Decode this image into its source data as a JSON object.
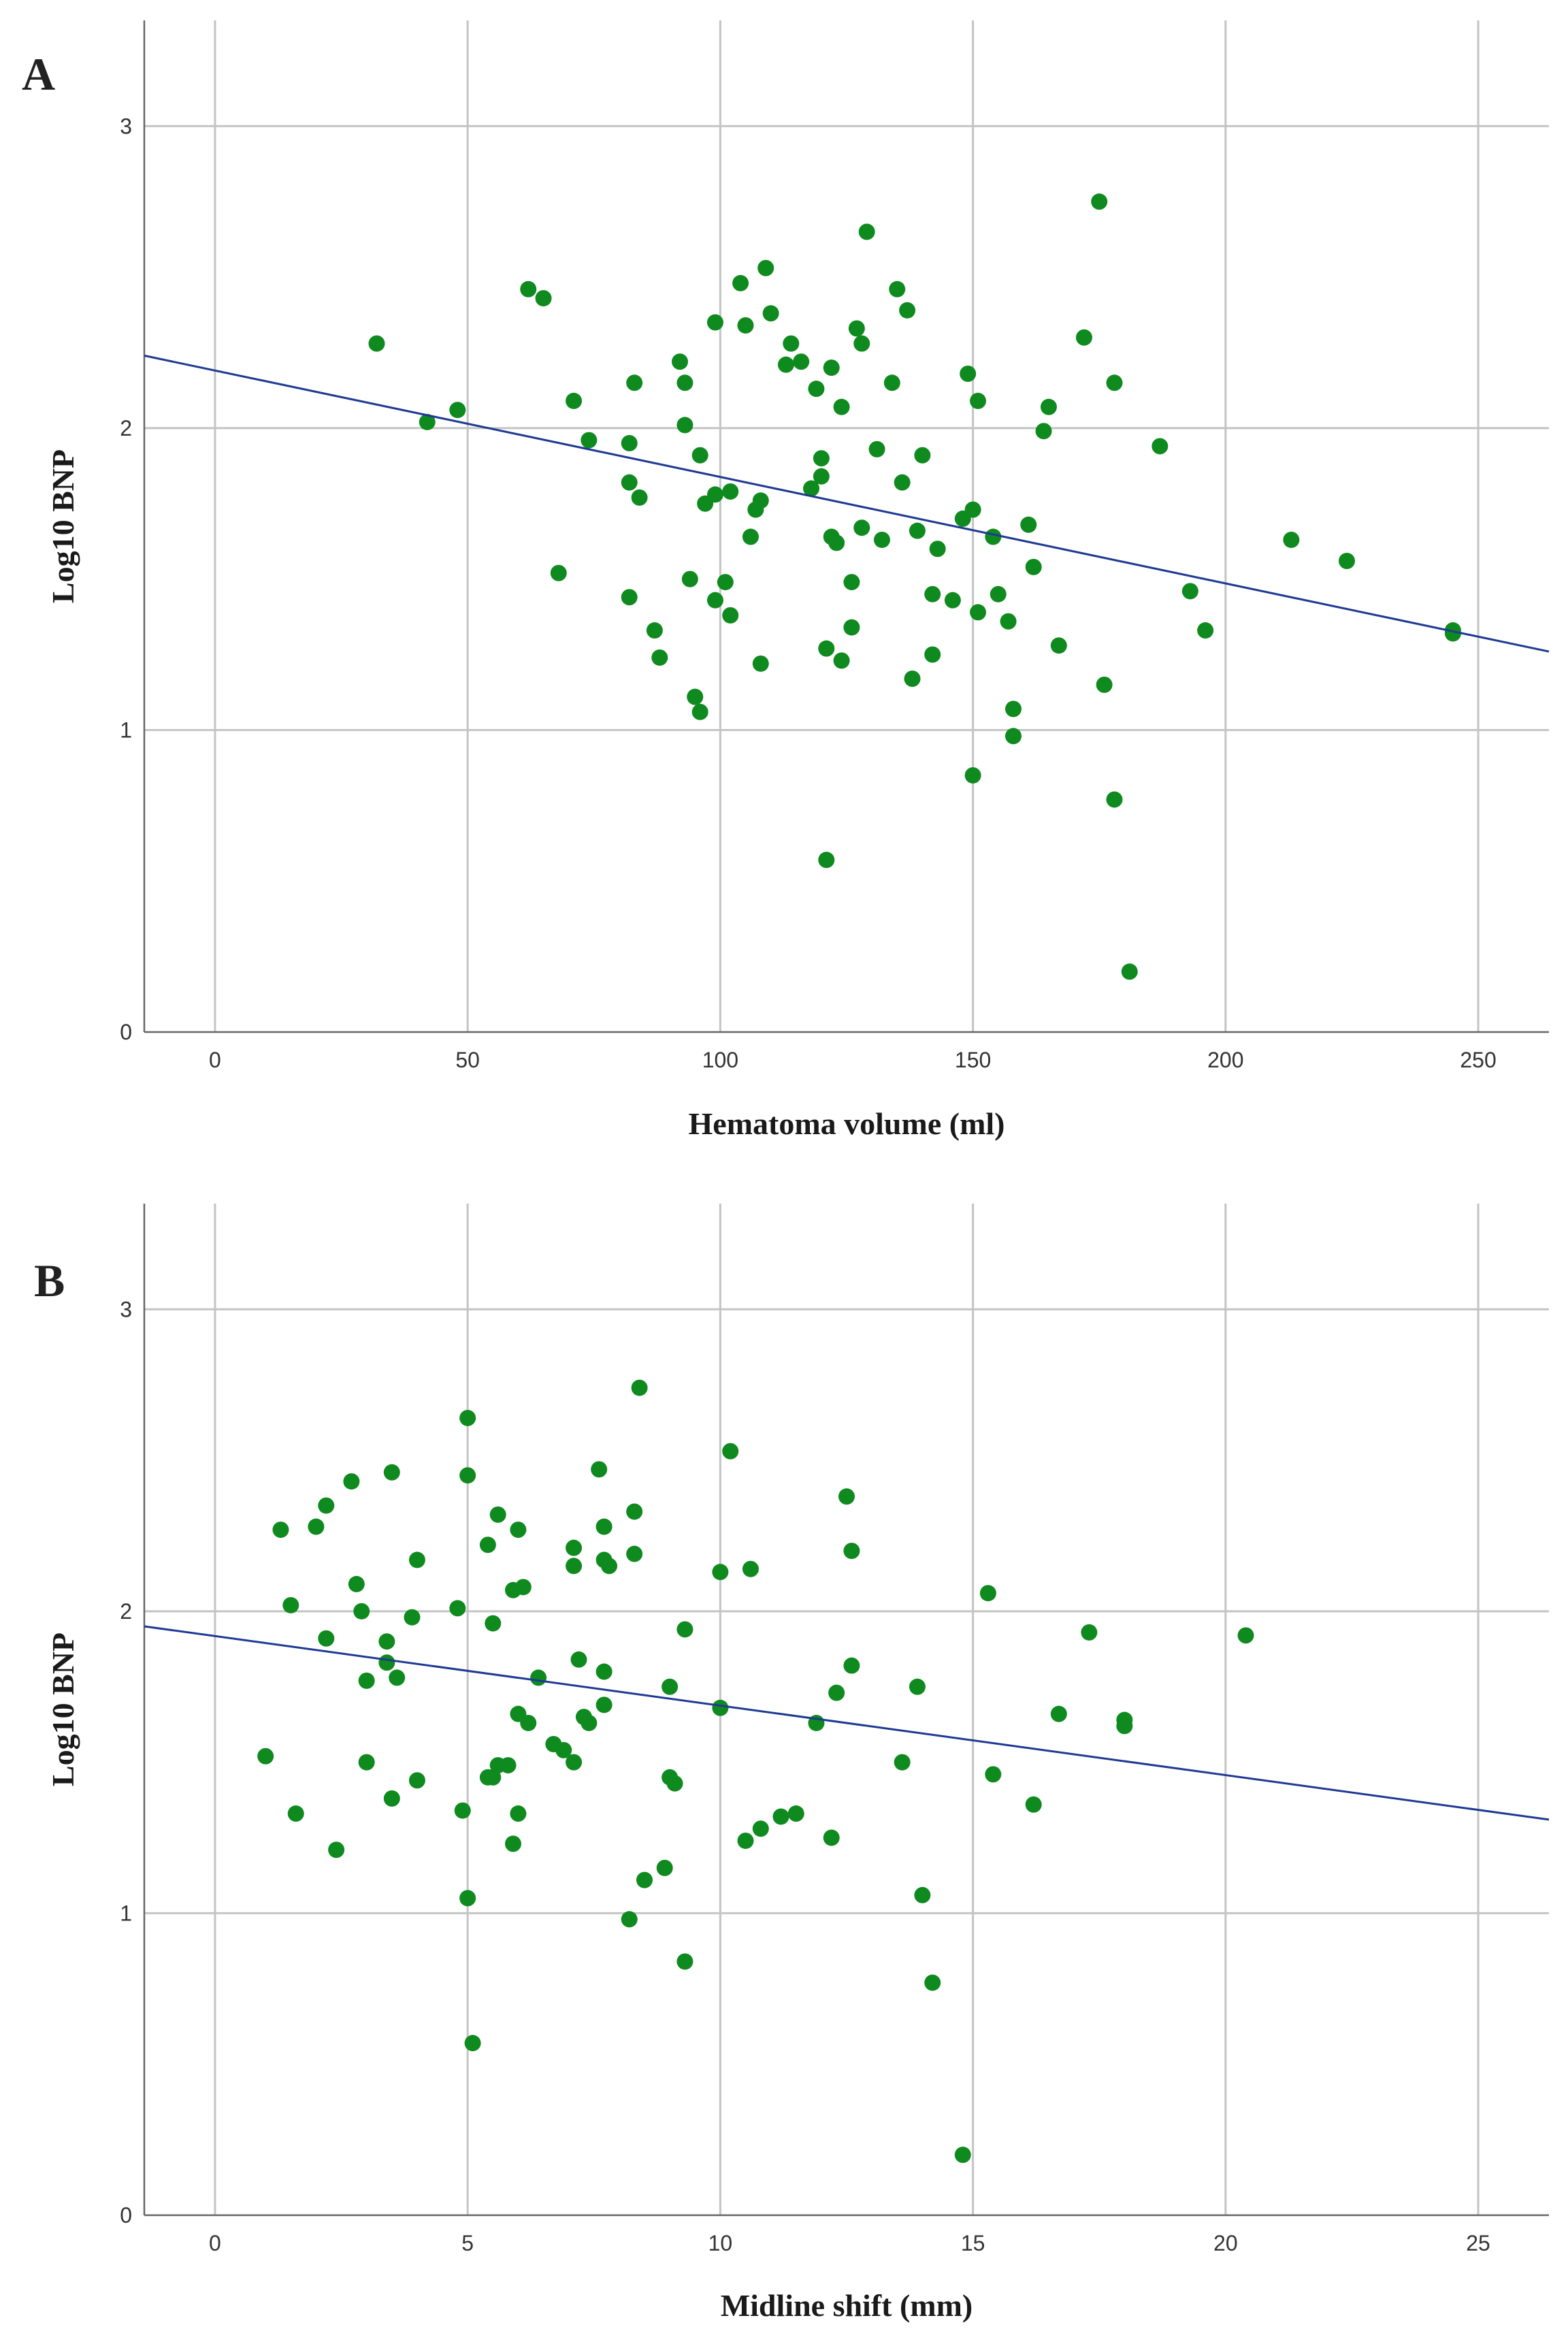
{
  "colors": {
    "point": "#0f8a1e",
    "fit_line": "#1f3a93",
    "grid": "#c4c4c4"
  },
  "chart_data": [
    {
      "panel": "A",
      "type": "scatter",
      "xlabel": "Hematoma volume (ml)",
      "ylabel": "Log10 BNP",
      "xlim": [
        -14,
        264
      ],
      "ylim": [
        0,
        3.35
      ],
      "xticks": [
        0,
        50,
        100,
        150,
        200,
        250
      ],
      "yticks": [
        0,
        1,
        2,
        3
      ],
      "fit_line": {
        "x": [
          -14,
          264
        ],
        "y": [
          2.24,
          1.26
        ]
      },
      "points": [
        [
          32,
          2.28
        ],
        [
          42,
          2.02
        ],
        [
          48,
          2.06
        ],
        [
          62,
          2.46
        ],
        [
          65,
          2.43
        ],
        [
          68,
          1.52
        ],
        [
          71,
          2.09
        ],
        [
          74,
          1.96
        ],
        [
          82,
          1.44
        ],
        [
          82,
          1.95
        ],
        [
          82,
          1.82
        ],
        [
          83,
          2.15
        ],
        [
          84,
          1.77
        ],
        [
          87,
          1.33
        ],
        [
          88,
          1.24
        ],
        [
          92,
          2.22
        ],
        [
          93,
          2.01
        ],
        [
          93,
          2.15
        ],
        [
          94,
          1.5
        ],
        [
          95,
          1.11
        ],
        [
          96,
          1.06
        ],
        [
          96,
          1.91
        ],
        [
          97,
          1.75
        ],
        [
          99,
          2.35
        ],
        [
          99,
          1.78
        ],
        [
          99,
          1.43
        ],
        [
          101,
          1.49
        ],
        [
          102,
          1.38
        ],
        [
          102,
          1.79
        ],
        [
          104,
          2.48
        ],
        [
          105,
          2.34
        ],
        [
          106,
          1.64
        ],
        [
          107,
          1.73
        ],
        [
          108,
          1.76
        ],
        [
          108,
          1.22
        ],
        [
          109,
          2.53
        ],
        [
          110,
          2.38
        ],
        [
          113,
          2.21
        ],
        [
          114,
          2.28
        ],
        [
          116,
          2.22
        ],
        [
          118,
          1.8
        ],
        [
          119,
          2.13
        ],
        [
          120,
          1.84
        ],
        [
          120,
          1.9
        ],
        [
          121,
          1.27
        ],
        [
          121,
          0.57
        ],
        [
          122,
          2.2
        ],
        [
          122,
          1.64
        ],
        [
          123,
          1.62
        ],
        [
          124,
          1.23
        ],
        [
          124,
          2.07
        ],
        [
          126,
          1.49
        ],
        [
          126,
          1.34
        ],
        [
          127,
          2.33
        ],
        [
          128,
          2.28
        ],
        [
          128,
          1.67
        ],
        [
          129,
          2.65
        ],
        [
          131,
          1.93
        ],
        [
          132,
          1.63
        ],
        [
          134,
          2.15
        ],
        [
          135,
          2.46
        ],
        [
          136,
          1.82
        ],
        [
          137,
          2.39
        ],
        [
          138,
          1.17
        ],
        [
          139,
          1.66
        ],
        [
          140,
          1.91
        ],
        [
          142,
          1.45
        ],
        [
          142,
          1.25
        ],
        [
          143,
          1.6
        ],
        [
          146,
          1.43
        ],
        [
          148,
          1.7
        ],
        [
          149,
          2.18
        ],
        [
          150,
          1.73
        ],
        [
          150,
          0.85
        ],
        [
          151,
          2.09
        ],
        [
          151,
          1.39
        ],
        [
          154,
          1.64
        ],
        [
          155,
          1.45
        ],
        [
          157,
          1.36
        ],
        [
          158,
          1.07
        ],
        [
          158,
          0.98
        ],
        [
          161,
          1.68
        ],
        [
          162,
          1.54
        ],
        [
          164,
          1.99
        ],
        [
          165,
          2.07
        ],
        [
          167,
          1.28
        ],
        [
          172,
          2.3
        ],
        [
          175,
          2.75
        ],
        [
          176,
          1.15
        ],
        [
          178,
          0.77
        ],
        [
          178,
          2.15
        ],
        [
          181,
          0.2
        ],
        [
          187,
          1.94
        ],
        [
          193,
          1.46
        ],
        [
          196,
          1.33
        ],
        [
          213,
          1.63
        ],
        [
          224,
          1.56
        ],
        [
          245,
          1.33
        ],
        [
          245,
          1.32
        ]
      ]
    },
    {
      "panel": "B",
      "type": "scatter",
      "xlabel": "Midline shift (mm)",
      "ylabel": "Log10 BNP",
      "xlim": [
        -1.4,
        26.4
      ],
      "ylim": [
        0,
        3.35
      ],
      "xticks": [
        0,
        5,
        10,
        15,
        20,
        25
      ],
      "yticks": [
        0,
        1,
        2,
        3
      ],
      "fit_line": {
        "x": [
          -1.4,
          26.4
        ],
        "y": [
          1.95,
          1.31
        ]
      },
      "points": [
        [
          1.0,
          1.52
        ],
        [
          1.3,
          2.27
        ],
        [
          1.5,
          2.02
        ],
        [
          1.6,
          1.33
        ],
        [
          2.0,
          2.28
        ],
        [
          2.2,
          1.91
        ],
        [
          2.2,
          2.35
        ],
        [
          2.4,
          1.21
        ],
        [
          2.7,
          2.43
        ],
        [
          2.8,
          2.09
        ],
        [
          2.9,
          2.0
        ],
        [
          3.0,
          1.77
        ],
        [
          3.0,
          1.5
        ],
        [
          3.4,
          1.9
        ],
        [
          3.4,
          1.83
        ],
        [
          3.5,
          1.38
        ],
        [
          3.5,
          2.46
        ],
        [
          3.6,
          1.78
        ],
        [
          3.9,
          1.98
        ],
        [
          4.0,
          1.44
        ],
        [
          4.0,
          2.17
        ],
        [
          4.8,
          2.01
        ],
        [
          4.9,
          1.34
        ],
        [
          5.0,
          2.64
        ],
        [
          5.0,
          2.45
        ],
        [
          5.0,
          1.05
        ],
        [
          5.1,
          0.57
        ],
        [
          5.4,
          1.45
        ],
        [
          5.4,
          2.22
        ],
        [
          5.5,
          1.96
        ],
        [
          5.5,
          1.45
        ],
        [
          5.6,
          2.32
        ],
        [
          5.6,
          1.49
        ],
        [
          5.8,
          1.49
        ],
        [
          5.9,
          2.07
        ],
        [
          5.9,
          1.23
        ],
        [
          6.0,
          2.27
        ],
        [
          6.0,
          1.66
        ],
        [
          6.0,
          1.33
        ],
        [
          6.1,
          2.08
        ],
        [
          6.2,
          1.63
        ],
        [
          6.4,
          1.78
        ],
        [
          6.7,
          1.56
        ],
        [
          6.9,
          1.54
        ],
        [
          7.1,
          1.5
        ],
        [
          7.1,
          2.21
        ],
        [
          7.1,
          2.15
        ],
        [
          7.2,
          1.84
        ],
        [
          7.3,
          1.65
        ],
        [
          7.4,
          1.63
        ],
        [
          7.6,
          2.47
        ],
        [
          7.7,
          2.28
        ],
        [
          7.7,
          2.17
        ],
        [
          7.7,
          1.8
        ],
        [
          7.7,
          1.69
        ],
        [
          7.8,
          2.15
        ],
        [
          8.2,
          0.98
        ],
        [
          8.3,
          2.33
        ],
        [
          8.3,
          2.19
        ],
        [
          8.4,
          2.74
        ],
        [
          8.5,
          1.11
        ],
        [
          8.9,
          1.15
        ],
        [
          9.0,
          1.45
        ],
        [
          9.0,
          1.75
        ],
        [
          9.1,
          1.43
        ],
        [
          9.3,
          0.84
        ],
        [
          9.3,
          1.94
        ],
        [
          10.0,
          2.13
        ],
        [
          10.0,
          1.68
        ],
        [
          10.2,
          2.53
        ],
        [
          10.5,
          1.24
        ],
        [
          10.6,
          2.14
        ],
        [
          10.8,
          1.28
        ],
        [
          11.2,
          1.32
        ],
        [
          11.5,
          1.33
        ],
        [
          11.9,
          1.63
        ],
        [
          12.2,
          1.25
        ],
        [
          12.3,
          1.73
        ],
        [
          12.5,
          2.38
        ],
        [
          12.6,
          2.2
        ],
        [
          12.6,
          1.82
        ],
        [
          13.6,
          1.5
        ],
        [
          13.9,
          1.75
        ],
        [
          14.0,
          1.06
        ],
        [
          14.2,
          0.77
        ],
        [
          14.8,
          0.2
        ],
        [
          15.3,
          2.06
        ],
        [
          15.4,
          1.46
        ],
        [
          16.2,
          1.36
        ],
        [
          16.7,
          1.66
        ],
        [
          17.3,
          1.93
        ],
        [
          18.0,
          1.64
        ],
        [
          18.0,
          1.62
        ],
        [
          20.4,
          1.92
        ]
      ]
    }
  ],
  "panels": [
    {
      "label": "A",
      "xlabel": "Hematoma volume (ml)",
      "ylabel": "Log10 BNP",
      "xtick_labels": [
        "0",
        "50",
        "100",
        "150",
        "200",
        "250"
      ],
      "ytick_labels": [
        "0",
        "1",
        "2",
        "3"
      ]
    },
    {
      "label": "B",
      "xlabel": "Midline shift (mm)",
      "ylabel": "Log10 BNP",
      "xtick_labels": [
        "0",
        "5",
        "10",
        "15",
        "20",
        "25"
      ],
      "ytick_labels": [
        "0",
        "1",
        "2",
        "3"
      ]
    }
  ]
}
